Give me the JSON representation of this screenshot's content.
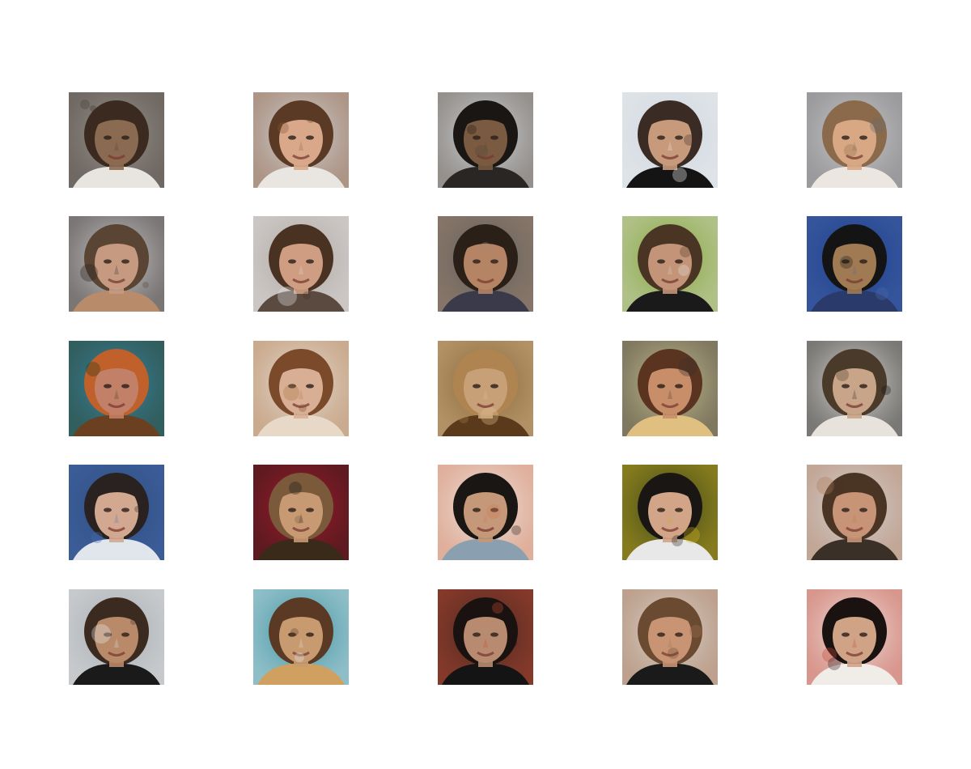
{
  "grid": {
    "rows": 5,
    "cols": 5,
    "images": [
      {
        "bg": "#9e9a96",
        "skin": "#8a6a50",
        "hair": "#3a2a20",
        "shirt": "#e8e4e0",
        "accent": "#4a4038"
      },
      {
        "bg": "#d8dee4",
        "skin": "#d9a88a",
        "hair": "#5a3a24",
        "shirt": "#e9e6e2",
        "accent": "#8a5a3a"
      },
      {
        "bg": "#dde6ee",
        "skin": "#7a5a40",
        "hair": "#1a1614",
        "shirt": "#2a2624",
        "accent": "#5a4a3c"
      },
      {
        "bg": "#c9d3dd",
        "skin": "#c89a7c",
        "hair": "#3a2c24",
        "shirt": "#141414",
        "accent": "#f0f0f0"
      },
      {
        "bg": "#d6d4d2",
        "skin": "#d8a884",
        "hair": "#8a6a4a",
        "shirt": "#ece6e0",
        "accent": "#6a6a72"
      },
      {
        "bg": "#dcdcdc",
        "skin": "#c59a80",
        "hair": "#5a4434",
        "shirt": "#b88c6a",
        "accent": "#2a2220"
      },
      {
        "bg": "#a8a29c",
        "skin": "#cf9d82",
        "hair": "#4a3222",
        "shirt": "#5a4a40",
        "accent": "#e8e4e4"
      },
      {
        "bg": "#5a5a5c",
        "skin": "#b58464",
        "hair": "#2a2018",
        "shirt": "#3a3a4a",
        "accent": "#a88a70"
      },
      {
        "bg": "#7aa02a",
        "skin": "#c49478",
        "hair": "#4a3424",
        "shirt": "#1a1a1a",
        "accent": "#dcdcd4"
      },
      {
        "bg": "#1a3a8a",
        "skin": "#a07a52",
        "hair": "#141414",
        "shirt": "#2a3a6a",
        "accent": "#4a6aaa"
      },
      {
        "bg": "#3a8ab0",
        "skin": "#c28068",
        "hair": "#c0602a",
        "shirt": "#6a4020",
        "accent": "#2a3a1a"
      },
      {
        "bg": "#eae6e2",
        "skin": "#d8ae94",
        "hair": "#7a4a2a",
        "shirt": "#e8d8c8",
        "accent": "#b07a4a"
      },
      {
        "bg": "#7a5a30",
        "skin": "#c8a078",
        "hair": "#b08450",
        "shirt": "#5a3a1a",
        "accent": "#e0c090"
      },
      {
        "bg": "#d4cc9a",
        "skin": "#c88e6a",
        "hair": "#5a3420",
        "shirt": "#e0c080",
        "accent": "#3a3430"
      },
      {
        "bg": "#f0ece6",
        "skin": "#c8a488",
        "hair": "#4a3a2a",
        "shirt": "#e8e2dc",
        "accent": "#1a1a1a"
      },
      {
        "bg": "#2a4a7a",
        "skin": "#d2a890",
        "hair": "#2a2220",
        "shirt": "#e0e6ec",
        "accent": "#4a6ab0"
      },
      {
        "bg": "#b01a2a",
        "skin": "#c89a74",
        "hair": "#7a5a3a",
        "shirt": "#3a2a1a",
        "accent": "#1a1a1a"
      },
      {
        "bg": "#f2f0ec",
        "skin": "#c49878",
        "hair": "#1a1614",
        "shirt": "#8aa0b0",
        "accent": "#d07a5a"
      },
      {
        "bg": "#2a3a1a",
        "skin": "#d2a488",
        "hair": "#1a1614",
        "shirt": "#e8e8e8",
        "accent": "#d0b020"
      },
      {
        "bg": "#d8dce0",
        "skin": "#c89478",
        "hair": "#4a3424",
        "shirt": "#3a3028",
        "accent": "#b07a5a"
      },
      {
        "bg": "#9ea4aa",
        "skin": "#b88a6a",
        "hair": "#3a2a20",
        "shirt": "#1a1a1a",
        "accent": "#e8e8e8"
      },
      {
        "bg": "#2a8a9a",
        "skin": "#c89a70",
        "hair": "#5a3a24",
        "shirt": "#d0a060",
        "accent": "#e0e8ec"
      },
      {
        "bg": "#3a2420",
        "skin": "#b88a70",
        "hair": "#1a1210",
        "shirt": "#141414",
        "accent": "#c04a30"
      },
      {
        "bg": "#e0dcd8",
        "skin": "#c89474",
        "hair": "#6a4a30",
        "shirt": "#1a1a1a",
        "accent": "#a07050"
      },
      {
        "bg": "#f4f2f0",
        "skin": "#d0a286",
        "hair": "#1a1210",
        "shirt": "#f0ece8",
        "accent": "#c04a3a"
      }
    ]
  }
}
